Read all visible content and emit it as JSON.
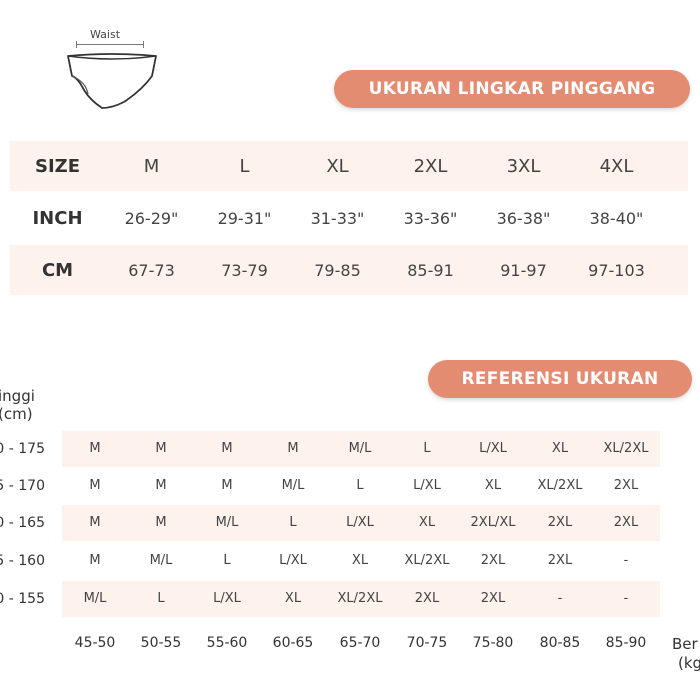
{
  "diagram": {
    "waist_label": "Waist"
  },
  "size_chart": {
    "title": "UKURAN LINGKAR PINGGANG",
    "rows": [
      {
        "label": "SIZE",
        "cells": [
          "M",
          "L",
          "XL",
          "2XL",
          "3XL",
          "4XL"
        ]
      },
      {
        "label": "INCH",
        "cells": [
          "26-29\"",
          "29-31\"",
          "31-33\"",
          "33-36\"",
          "36-38\"",
          "38-40\""
        ]
      },
      {
        "label": "CM",
        "cells": [
          "67-73",
          "73-79",
          "79-85",
          "85-91",
          "91-97",
          "97-103"
        ]
      }
    ]
  },
  "reference": {
    "title": "REFERENSI UKURAN",
    "y_label_line1": "inggi",
    "y_label_line2": "(cm)",
    "x_label_line1": "Ber",
    "x_label_line2": "(kg",
    "rows": [
      {
        "label": "0 - 175",
        "cells": [
          "M",
          "M",
          "M",
          "M",
          "M/L",
          "L",
          "L/XL",
          "XL",
          "XL/2XL"
        ]
      },
      {
        "label": "5 - 170",
        "cells": [
          "M",
          "M",
          "M",
          "M/L",
          "L",
          "L/XL",
          "XL",
          "XL/2XL",
          "2XL"
        ]
      },
      {
        "label": "0 - 165",
        "cells": [
          "M",
          "M",
          "M/L",
          "L",
          "L/XL",
          "XL",
          "2XL/XL",
          "2XL",
          "2XL"
        ]
      },
      {
        "label": "5 - 160",
        "cells": [
          "M",
          "M/L",
          "L",
          "L/XL",
          "XL",
          "XL/2XL",
          "2XL",
          "2XL",
          "-"
        ]
      },
      {
        "label": "0 - 155",
        "cells": [
          "M/L",
          "L",
          "L/XL",
          "XL",
          "XL/2XL",
          "2XL",
          "2XL",
          "-",
          "-"
        ]
      }
    ],
    "weights": [
      "45-50",
      "50-55",
      "55-60",
      "60-65",
      "65-70",
      "70-75",
      "75-80",
      "80-85",
      "85-90"
    ]
  },
  "colors": {
    "accent": "#e48c72",
    "row_shade": "#fdf2ec"
  }
}
